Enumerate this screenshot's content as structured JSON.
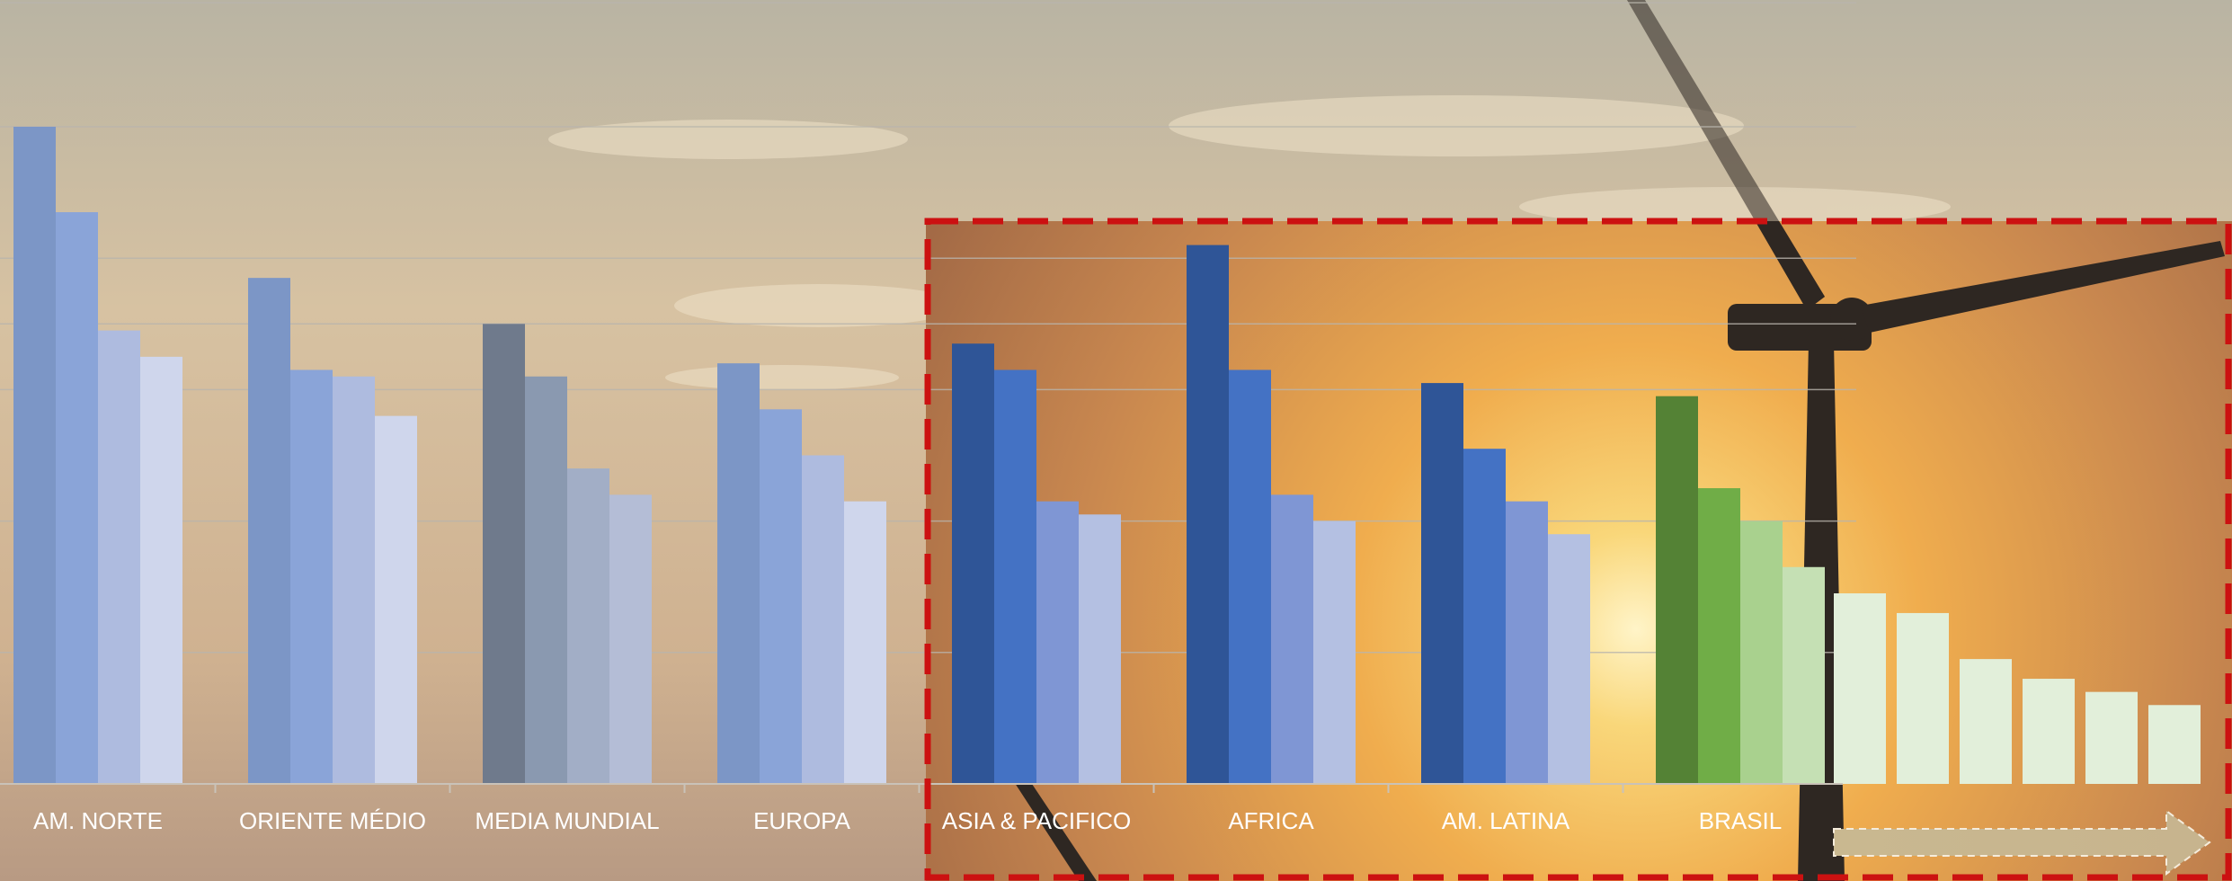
{
  "colors": {
    "sky_top": "#b9b2a0",
    "sky_mid": "#d8bf9c",
    "sun_glow": "#f6c25a",
    "highlight_border": "#cc1111",
    "turbine": "#2e2722",
    "label_text": "#ffffff"
  },
  "chart_data": {
    "type": "bar",
    "title": "",
    "xlabel": "",
    "ylabel": "",
    "ylim": [
      0,
      100
    ],
    "grid": true,
    "legend": "none",
    "gridlines": [
      20,
      40,
      60,
      70,
      80,
      100
    ],
    "categories": [
      "AM. NORTE",
      "ORIENTE MÉDIO",
      "MEDIA MUNDIAL",
      "EUROPA",
      "ASIA & PACIFICO",
      "AFRICA",
      "AM. LATINA",
      "BRASIL"
    ],
    "groups": [
      {
        "category": "AM. NORTE",
        "values": [
          100,
          87,
          69,
          65
        ],
        "colors": [
          "#7c96c6",
          "#8aa4d8",
          "#aebbdf",
          "#cfd6ec"
        ]
      },
      {
        "category": "ORIENTE MÉDIO",
        "values": [
          77,
          63,
          62,
          56
        ],
        "colors": [
          "#7c96c6",
          "#8aa4d8",
          "#aebbdf",
          "#cfd6ec"
        ]
      },
      {
        "category": "MEDIA MUNDIAL",
        "values": [
          70,
          62,
          48,
          44
        ],
        "colors": [
          "#6f7a8c",
          "#8a99b0",
          "#a2aec6",
          "#b4bdd6"
        ]
      },
      {
        "category": "EUROPA",
        "values": [
          64,
          57,
          50,
          43
        ],
        "colors": [
          "#7c96c6",
          "#8aa4d8",
          "#aebbdf",
          "#cfd6ec"
        ]
      },
      {
        "category": "ASIA & PACIFICO",
        "values": [
          67,
          63,
          43,
          41
        ],
        "colors": [
          "#2f5597",
          "#4472c4",
          "#7f96d4",
          "#b4c0e2"
        ]
      },
      {
        "category": "AFRICA",
        "values": [
          82,
          63,
          44,
          40
        ],
        "colors": [
          "#2f5597",
          "#4472c4",
          "#7f96d4",
          "#b4c0e2"
        ]
      },
      {
        "category": "AM. LATINA",
        "values": [
          61,
          51,
          43,
          38
        ],
        "colors": [
          "#2f5597",
          "#4472c4",
          "#7f96d4",
          "#b4c0e2"
        ]
      },
      {
        "category": "BRASIL",
        "values": [
          59,
          45,
          40,
          33
        ],
        "colors": [
          "#548235",
          "#70ad47",
          "#a9d18e",
          "#c5e0b4"
        ]
      }
    ],
    "extra_bars": {
      "values": [
        29,
        26,
        19,
        16,
        14,
        12
      ],
      "color": "#e2efda"
    },
    "highlight_box": {
      "from_category": "ASIA & PACIFICO",
      "to": "end",
      "style": "dashed"
    },
    "arrow": {
      "direction": "right",
      "style": "dashed-outline"
    }
  }
}
